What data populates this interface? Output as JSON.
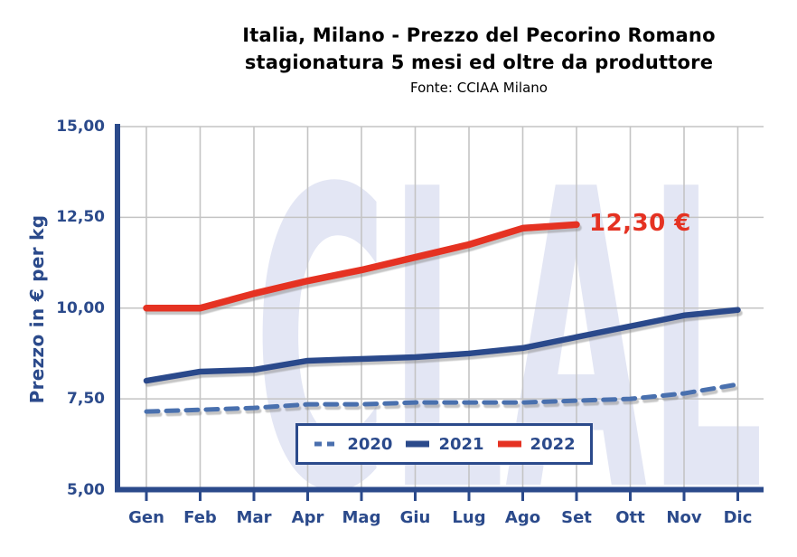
{
  "header": {
    "title_line1": "Italia, Milano - Prezzo del Pecorino Romano",
    "title_line2": "stagionatura 5 mesi ed oltre da produttore",
    "source": "Fonte: CCIAA Milano"
  },
  "watermark": "CLAL",
  "colors": {
    "navy": "#2B4A8B",
    "gridline": "#C4C4C4",
    "watermark": "#E3E6F4",
    "series_2020": "#4A6FAE",
    "series_2021": "#2B4A8B",
    "series_2022": "#E53222"
  },
  "chart_data": {
    "type": "line",
    "title": "Italia, Milano - Prezzo del Pecorino Romano stagionatura 5 mesi ed oltre da produttore",
    "source": "Fonte: CCIAA Milano",
    "xlabel": "",
    "ylabel": "Prezzo in € per kg",
    "ylim": [
      5.0,
      15.0
    ],
    "grid": true,
    "legend_position": "bottom-center",
    "y_ticks": [
      {
        "label": "15,00",
        "value": 15.0
      },
      {
        "label": "12,50",
        "value": 12.5
      },
      {
        "label": "10,00",
        "value": 10.0
      },
      {
        "label": "7,50",
        "value": 7.5
      },
      {
        "label": "5,00",
        "value": 5.0
      }
    ],
    "categories": [
      "Gen",
      "Feb",
      "Mar",
      "Apr",
      "Mag",
      "Giu",
      "Lug",
      "Ago",
      "Set",
      "Ott",
      "Nov",
      "Dic"
    ],
    "series": [
      {
        "name": "2020",
        "style": "dashed",
        "color": "#4A6FAE",
        "width": 5,
        "values": [
          7.15,
          7.2,
          7.25,
          7.35,
          7.35,
          7.4,
          7.4,
          7.4,
          7.45,
          7.5,
          7.65,
          7.9
        ]
      },
      {
        "name": "2021",
        "style": "solid",
        "color": "#2B4A8B",
        "width": 6.5,
        "values": [
          8.0,
          8.25,
          8.3,
          8.55,
          8.6,
          8.65,
          8.75,
          8.9,
          9.2,
          9.5,
          9.8,
          9.95
        ]
      },
      {
        "name": "2022",
        "style": "solid",
        "color": "#E53222",
        "width": 7.5,
        "values": [
          10.0,
          10.0,
          10.4,
          10.75,
          11.05,
          11.4,
          11.75,
          12.2,
          12.3
        ]
      }
    ],
    "annotation": {
      "text": "12,30 €",
      "series": "2022",
      "category": "Set",
      "value": 12.3
    }
  }
}
